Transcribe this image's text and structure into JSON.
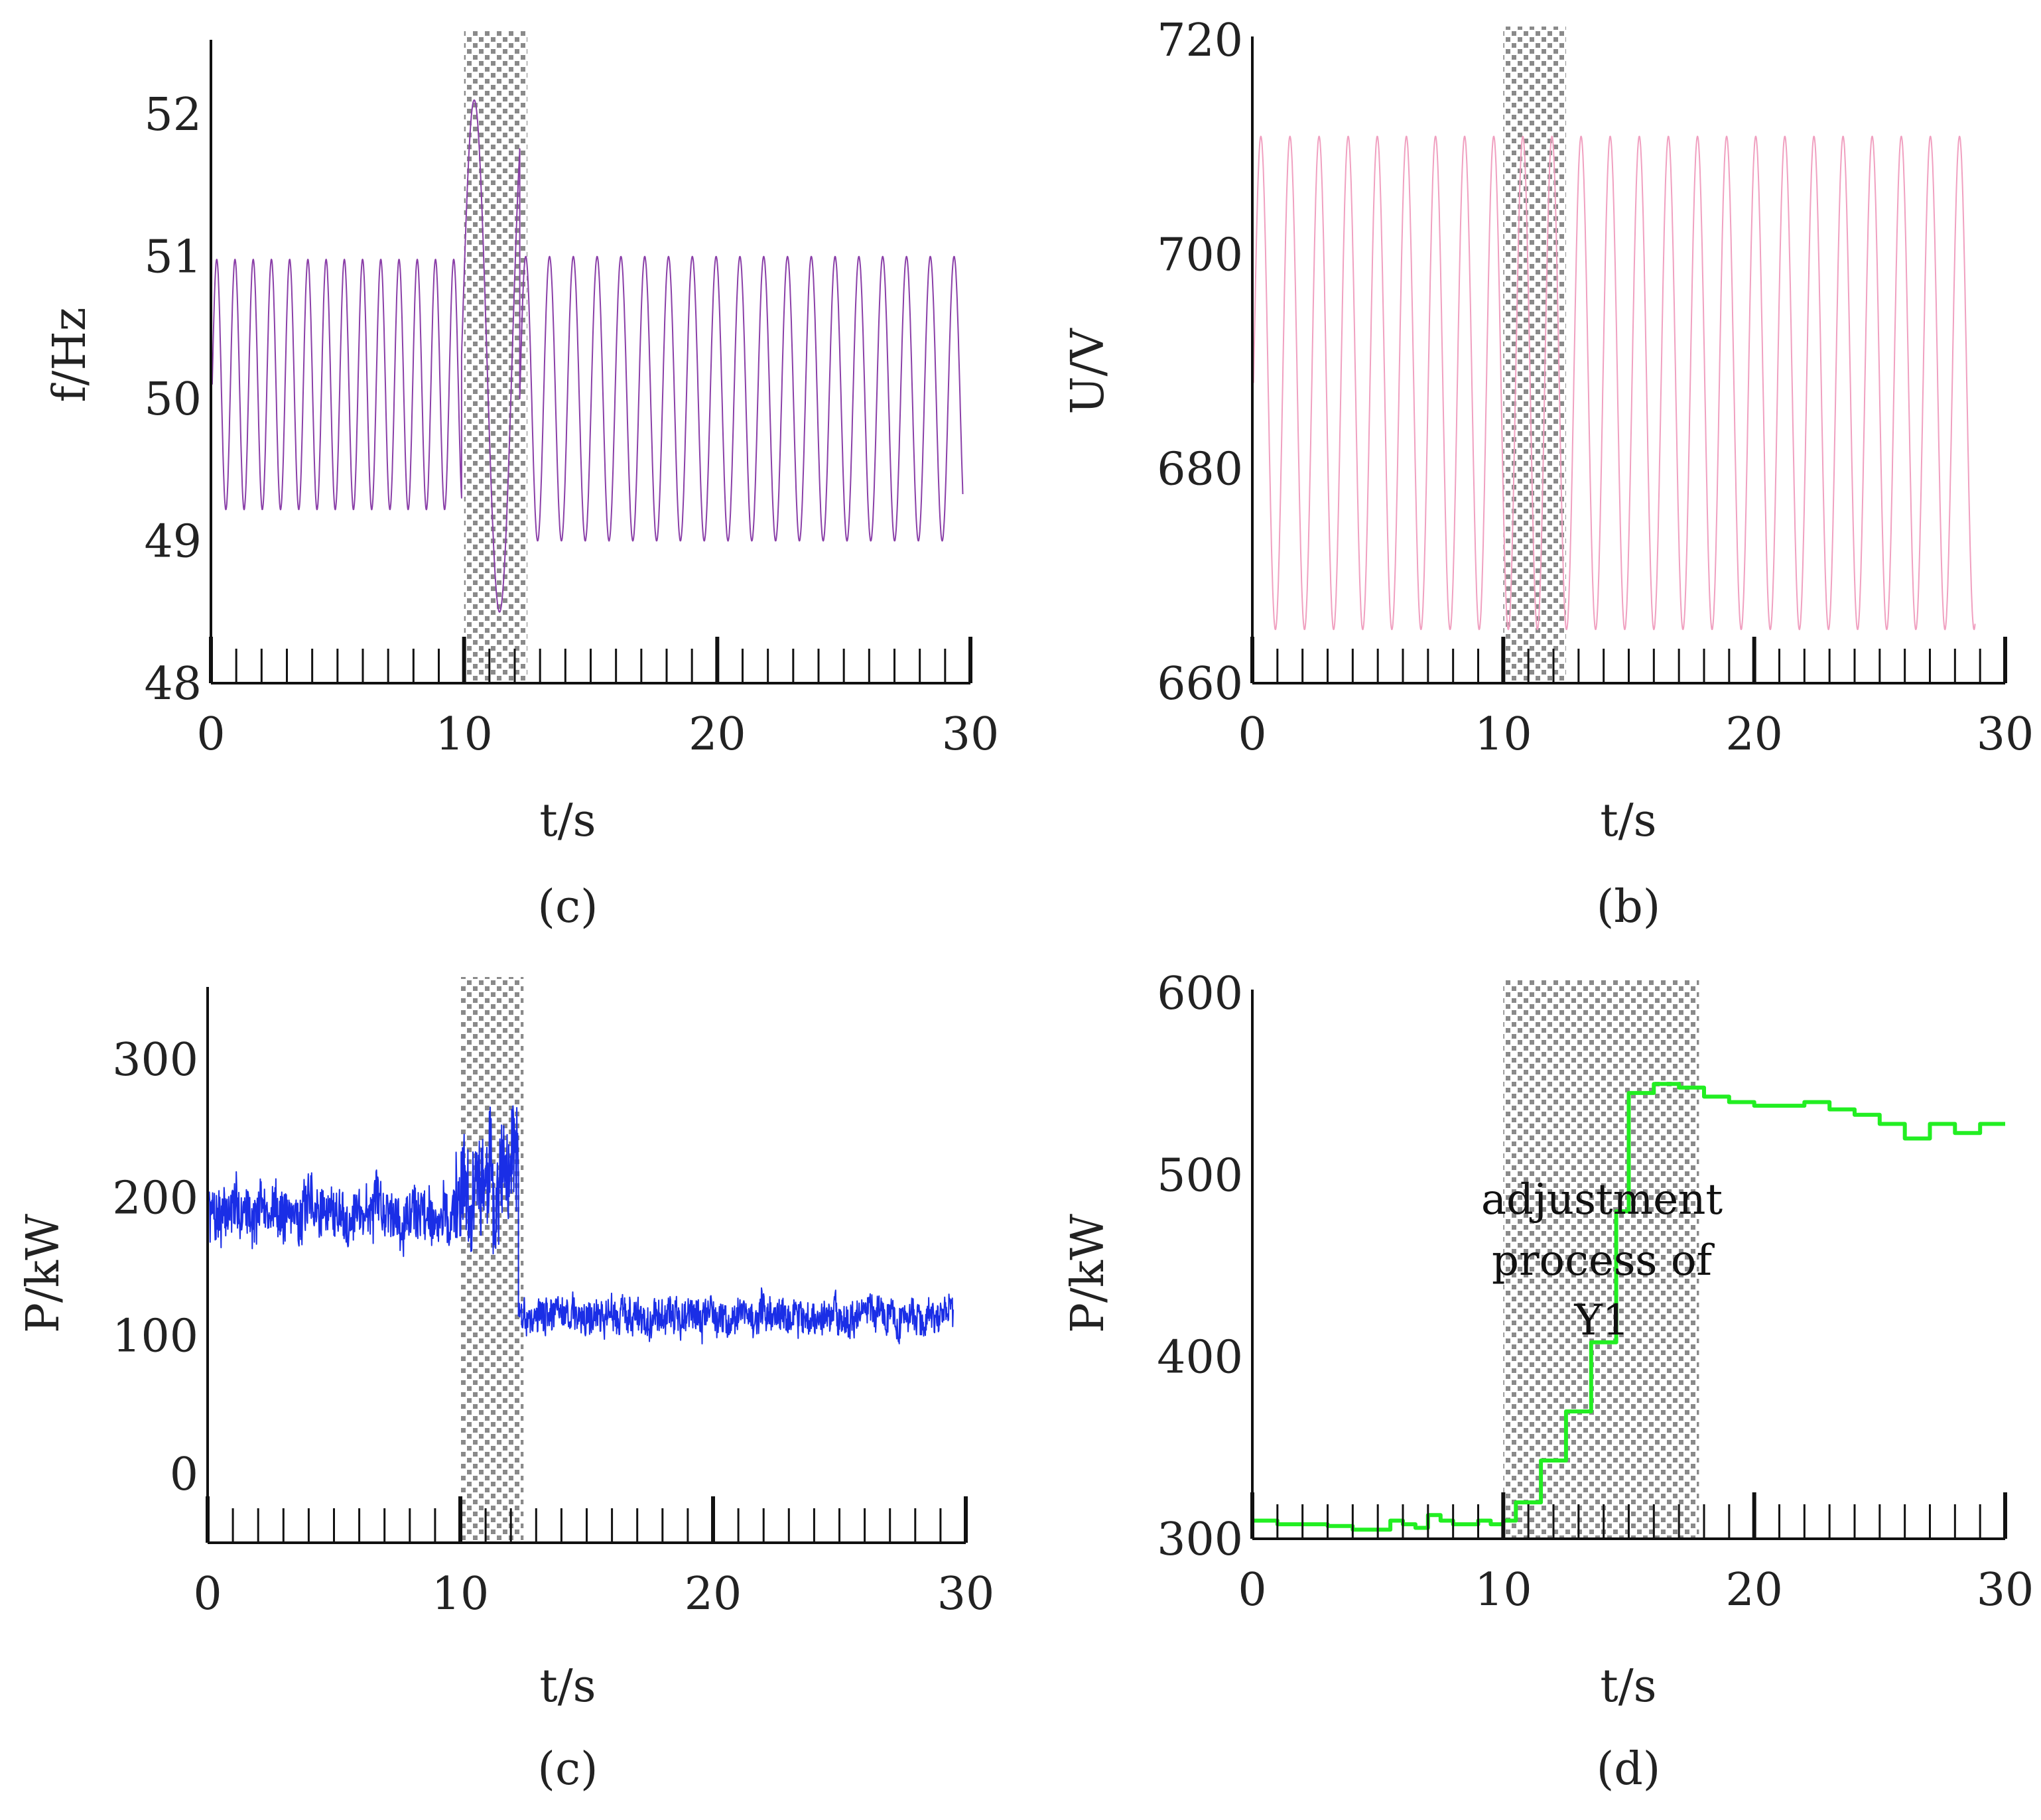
{
  "chart_data": [
    {
      "id": "c-top",
      "type": "line",
      "caption": "(c)",
      "xlabel": "t/s",
      "ylabel": "f/Hz",
      "xlim": [
        0,
        30
      ],
      "ylim": [
        48,
        52.5
      ],
      "xticks": [
        0,
        10,
        20,
        30
      ],
      "yticks": [
        48,
        49,
        50,
        51,
        52
      ],
      "color": "#8a3fa8",
      "line_width": 2,
      "highlight": {
        "x0": 10,
        "x1": 12.5
      },
      "series": [
        {
          "name": "f",
          "signal": "sine",
          "t_start": 0.05,
          "t_end": 29.7,
          "segments": [
            {
              "t0": 0.05,
              "t1": 9.9,
              "center": 50.1,
              "amp": 0.88,
              "period": 0.72,
              "phase": 0
            },
            {
              "t0": 9.9,
              "t1": 12.2,
              "center": 50.3,
              "amp": 1.8,
              "period": 2.0,
              "phase": 0
            },
            {
              "t0": 12.2,
              "t1": 29.7,
              "center": 50.0,
              "amp": 1.0,
              "period": 0.94,
              "phase": 0
            }
          ]
        }
      ]
    },
    {
      "id": "b",
      "type": "line",
      "caption": "(b)",
      "xlabel": "t/s",
      "ylabel": "U/V",
      "xlim": [
        0,
        30
      ],
      "ylim": [
        660,
        720
      ],
      "xticks": [
        0,
        10,
        20,
        30
      ],
      "yticks": [
        660,
        680,
        700,
        720
      ],
      "color": "#f0a0c0",
      "line_width": 2,
      "highlight": {
        "x0": 10,
        "x1": 12.5
      },
      "series": [
        {
          "name": "U",
          "signal": "sine",
          "t_start": 0.05,
          "t_end": 28.8,
          "segments": [
            {
              "t0": 0.05,
              "t1": 28.8,
              "center": 688,
              "amp": 23,
              "period": 1.16,
              "phase": 0
            }
          ]
        }
      ]
    },
    {
      "id": "c-bottom",
      "type": "line",
      "caption": "(c)",
      "xlabel": "t/s",
      "ylabel": "P/kW",
      "xlim": [
        0,
        30
      ],
      "ylim": [
        -50,
        350
      ],
      "xticks": [
        0,
        10,
        20,
        30
      ],
      "yticks": [
        0,
        100,
        200,
        300
      ],
      "color": "#1a2ee6",
      "line_width": 2,
      "highlight": {
        "x0": 10,
        "x1": 12.5
      },
      "series": [
        {
          "name": "P",
          "signal": "noisy",
          "t_start": 0.05,
          "t_end": 29.5,
          "segments": [
            {
              "t0": 0.05,
              "t1": 9.8,
              "center": 190,
              "amp": 22,
              "seed": 7
            },
            {
              "t0": 9.8,
              "t1": 12.3,
              "center": 210,
              "amp": 45,
              "seed": 11
            },
            {
              "t0": 12.3,
              "t1": 29.5,
              "center": 115,
              "amp": 14,
              "seed": 3
            }
          ]
        }
      ]
    },
    {
      "id": "d",
      "type": "line",
      "caption": "(d)",
      "xlabel": "t/s",
      "ylabel": "P/kW",
      "xlim": [
        0,
        30
      ],
      "ylim": [
        300,
        600
      ],
      "xticks": [
        0,
        10,
        20,
        30
      ],
      "yticks": [
        300,
        400,
        500,
        600
      ],
      "color": "#22ee22",
      "line_width": 6,
      "highlight": {
        "x0": 10,
        "x1": 17.8
      },
      "annotation": [
        "adjustment",
        "process of",
        "Y1"
      ],
      "series": [
        {
          "name": "P_Y1",
          "signal": "step",
          "x": [
            0,
            1,
            2,
            3,
            4,
            5,
            5.5,
            6,
            6.5,
            7,
            7.5,
            8,
            8.5,
            9,
            9.5,
            10,
            10.5,
            11,
            11.5,
            12,
            12.5,
            13,
            13.5,
            14,
            14.5,
            15,
            15.5,
            16,
            16.5,
            17,
            18,
            19,
            20,
            21,
            22,
            23,
            24,
            25,
            26,
            27,
            28,
            29,
            30
          ],
          "y": [
            310,
            308,
            308,
            307,
            305,
            305,
            310,
            308,
            306,
            313,
            310,
            308,
            308,
            310,
            308,
            310,
            320,
            320,
            343,
            343,
            370,
            370,
            408,
            408,
            480,
            545,
            545,
            550,
            550,
            548,
            543,
            540,
            538,
            538,
            540,
            536,
            533,
            528,
            520,
            528,
            523,
            528,
            528
          ]
        }
      ]
    }
  ]
}
